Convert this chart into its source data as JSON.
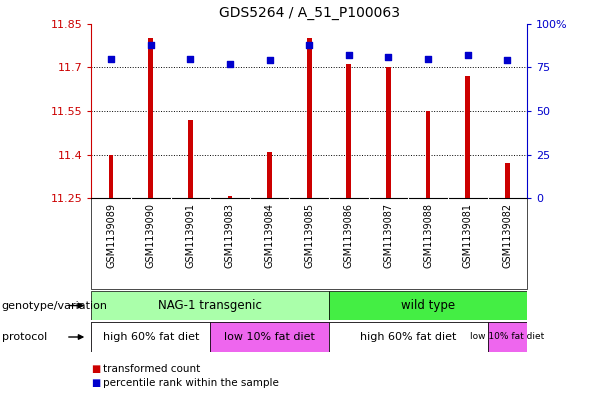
{
  "title": "GDS5264 / A_51_P100063",
  "samples": [
    "GSM1139089",
    "GSM1139090",
    "GSM1139091",
    "GSM1139083",
    "GSM1139084",
    "GSM1139085",
    "GSM1139086",
    "GSM1139087",
    "GSM1139088",
    "GSM1139081",
    "GSM1139082"
  ],
  "bar_values": [
    11.4,
    11.8,
    11.52,
    11.26,
    11.41,
    11.8,
    11.71,
    11.7,
    11.55,
    11.67,
    11.37
  ],
  "dot_values": [
    80,
    88,
    80,
    77,
    79,
    88,
    82,
    81,
    80,
    82,
    79
  ],
  "ymin": 11.25,
  "ymax": 11.85,
  "y2min": 0,
  "y2max": 100,
  "yticks": [
    11.25,
    11.4,
    11.55,
    11.7,
    11.85
  ],
  "y2ticks": [
    0,
    25,
    50,
    75,
    100
  ],
  "bar_color": "#cc0000",
  "dot_color": "#0000cc",
  "bar_width": 0.12,
  "genotype_groups": [
    {
      "label": "NAG-1 transgenic",
      "start": 0,
      "end": 5,
      "color": "#aaffaa"
    },
    {
      "label": "wild type",
      "start": 6,
      "end": 10,
      "color": "#44ee44"
    }
  ],
  "protocol_groups": [
    {
      "label": "high 60% fat diet",
      "start": 0,
      "end": 2,
      "color": "#ffffff"
    },
    {
      "label": "low 10% fat diet",
      "start": 3,
      "end": 5,
      "color": "#ee66ee"
    },
    {
      "label": "high 60% fat diet",
      "start": 6,
      "end": 9,
      "color": "#ffffff"
    },
    {
      "label": "low 10% fat diet",
      "start": 10,
      "end": 10,
      "color": "#ee66ee"
    }
  ],
  "protocol_bg_color": "#ee66ee",
  "legend_items": [
    {
      "label": "transformed count",
      "color": "#cc0000"
    },
    {
      "label": "percentile rank within the sample",
      "color": "#0000cc"
    }
  ],
  "label_genotype": "genotype/variation",
  "label_protocol": "protocol",
  "background_color": "#ffffff",
  "plot_bg_color": "#ffffff",
  "xtick_bg_color": "#cccccc",
  "grid_dotted_values": [
    11.4,
    11.55,
    11.7
  ],
  "grid_color": "black"
}
